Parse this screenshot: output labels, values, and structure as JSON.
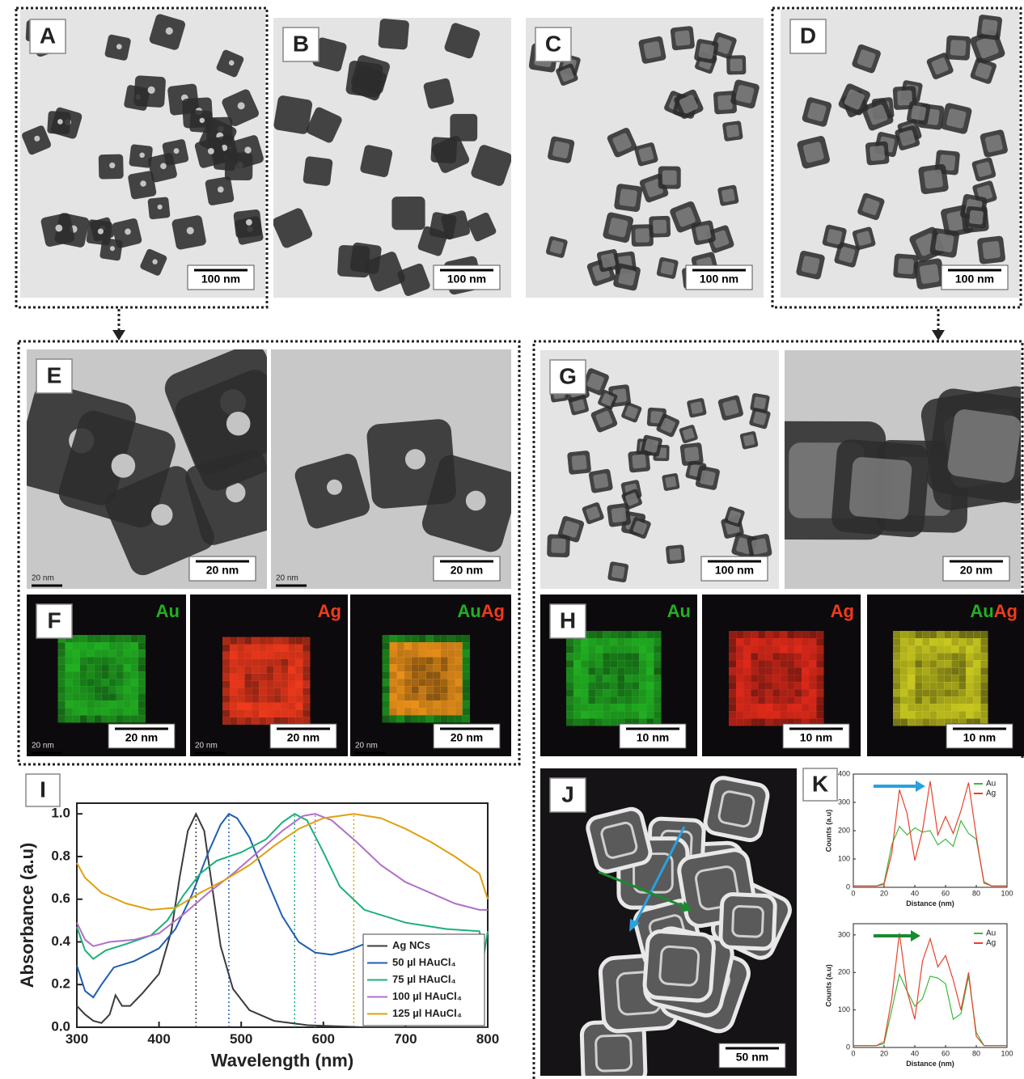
{
  "images": [
    {
      "label": "A",
      "scale_bar": "100 nm"
    },
    {
      "label": "B",
      "scale_bar": "100 nm"
    },
    {
      "label": "C",
      "scale_bar": "100 nm"
    },
    {
      "label": "D",
      "scale_bar": "100 nm"
    },
    {
      "label": "E",
      "scale_bar": "20 nm",
      "faint_scale": "20 nm"
    },
    {
      "scale_bar": "20 nm",
      "faint_scale": "20 nm"
    },
    {
      "label": "F",
      "scale_bar": "20 nm",
      "faint_scale": "20 nm",
      "elements": [
        {
          "text": "Au",
          "color": "#22b022"
        }
      ]
    },
    {
      "scale_bar": "20 nm",
      "faint_scale": "20 nm",
      "elements": [
        {
          "text": "Ag",
          "color": "#f03a1c"
        }
      ]
    },
    {
      "scale_bar": "20 nm",
      "faint_scale": "20 nm",
      "elements": [
        {
          "text": "Au",
          "color": "#22b022"
        },
        {
          "text": "Ag",
          "color": "#f03a1c"
        }
      ]
    },
    {
      "label": "G",
      "scale_bar": "100 nm"
    },
    {
      "scale_bar": "20 nm"
    },
    {
      "label": "H",
      "scale_bar": "10 nm",
      "elements": [
        {
          "text": "Au",
          "color": "#22b022"
        }
      ]
    },
    {
      "scale_bar": "10 nm",
      "elements": [
        {
          "text": "Ag",
          "color": "#f03a1c"
        }
      ]
    },
    {
      "scale_bar": "10 nm",
      "elements": [
        {
          "text": "Au",
          "color": "#22b022"
        },
        {
          "text": "Ag",
          "color": "#f03a1c"
        }
      ]
    },
    {
      "label": "J",
      "scale_bar": "50 nm"
    }
  ],
  "chart_data": [
    {
      "type": "line",
      "panel_label": "I",
      "x_label": "Wavelength (nm)",
      "y_label": "Absorbance (a.u)",
      "xlim": [
        300,
        800
      ],
      "ylim": [
        0,
        1.05
      ],
      "xticks": [
        300,
        400,
        500,
        600,
        700,
        800
      ],
      "yticks": [
        {
          "value": 0,
          "label": "0.0"
        },
        0.2,
        0.4,
        0.6,
        0.8,
        {
          "value": 1,
          "label": "1.0"
        }
      ],
      "legend": "lower right",
      "series": [
        {
          "name": "Ag NCs",
          "color": "#3c3c3c",
          "x": [
            300,
            310,
            320,
            330,
            340,
            347,
            355,
            365,
            380,
            400,
            415,
            425,
            435,
            445,
            455,
            465,
            475,
            490,
            510,
            540,
            580,
            650,
            800
          ],
          "values": [
            0.1,
            0.06,
            0.03,
            0.02,
            0.06,
            0.15,
            0.1,
            0.1,
            0.16,
            0.25,
            0.45,
            0.7,
            0.92,
            1.0,
            0.92,
            0.65,
            0.38,
            0.18,
            0.08,
            0.03,
            0.01,
            0.0,
            0.0
          ]
        },
        {
          "name": "50 µl HAuCl₄",
          "color": "#1f5fb0",
          "x": [
            300,
            310,
            320,
            330,
            345,
            370,
            400,
            420,
            440,
            460,
            475,
            485,
            495,
            510,
            530,
            550,
            570,
            590,
            610,
            630,
            650,
            665
          ],
          "values": [
            0.29,
            0.17,
            0.14,
            0.2,
            0.28,
            0.31,
            0.37,
            0.46,
            0.62,
            0.82,
            0.95,
            1.0,
            0.98,
            0.89,
            0.7,
            0.52,
            0.4,
            0.35,
            0.34,
            0.36,
            0.39,
            0.4
          ]
        },
        {
          "name": "75 µl HAuCl₄",
          "color": "#1db07a",
          "x": [
            300,
            310,
            320,
            335,
            360,
            390,
            410,
            430,
            450,
            470,
            500,
            530,
            550,
            565,
            580,
            600,
            620,
            650,
            700,
            750,
            790,
            795,
            800
          ],
          "values": [
            0.47,
            0.36,
            0.32,
            0.36,
            0.39,
            0.43,
            0.5,
            0.62,
            0.72,
            0.78,
            0.82,
            0.88,
            0.96,
            1.0,
            0.97,
            0.82,
            0.66,
            0.55,
            0.49,
            0.46,
            0.45,
            0.33,
            0.45
          ]
        },
        {
          "name": "100 µl HAuCl₄",
          "color": "#b070c8",
          "x": [
            300,
            310,
            320,
            340,
            370,
            400,
            430,
            460,
            490,
            520,
            550,
            575,
            590,
            610,
            640,
            670,
            700,
            730,
            760,
            790,
            800
          ],
          "values": [
            0.49,
            0.41,
            0.38,
            0.4,
            0.41,
            0.44,
            0.53,
            0.63,
            0.72,
            0.82,
            0.92,
            0.99,
            1.0,
            0.97,
            0.87,
            0.76,
            0.68,
            0.63,
            0.58,
            0.55,
            0.55
          ]
        },
        {
          "name": "125 µl HAuCl₄",
          "color": "#e0a010",
          "x": [
            300,
            310,
            330,
            360,
            390,
            420,
            450,
            480,
            510,
            540,
            570,
            600,
            637,
            670,
            700,
            730,
            760,
            790,
            800
          ],
          "values": [
            0.77,
            0.7,
            0.63,
            0.58,
            0.55,
            0.56,
            0.63,
            0.69,
            0.76,
            0.85,
            0.93,
            0.98,
            1.0,
            0.98,
            0.93,
            0.87,
            0.8,
            0.72,
            0.6
          ]
        }
      ],
      "peak_lines": [
        {
          "x": 445,
          "y": 1.0,
          "color": "#3c3c3c"
        },
        {
          "x": 485,
          "y": 1.0,
          "color": "#1f5fb0"
        },
        {
          "x": 565,
          "y": 1.0,
          "color": "#1db07a"
        },
        {
          "x": 590,
          "y": 1.0,
          "color": "#b070c8"
        },
        {
          "x": 637,
          "y": 1.0,
          "color": "#e0a010"
        }
      ]
    },
    {
      "type": "line",
      "panel_label": "K",
      "x_label": "Distance (nm)",
      "y_label": "Counts (a.u)",
      "xlim": [
        0,
        100
      ],
      "ylim": [
        0,
        400
      ],
      "xticks": [
        0,
        20,
        40,
        60,
        80,
        100
      ],
      "yticks": [
        0,
        100,
        200,
        300,
        400
      ],
      "legend": "upper right",
      "x": [
        0,
        5,
        10,
        15,
        20,
        25,
        30,
        35,
        40,
        45,
        50,
        55,
        60,
        65,
        70,
        75,
        80,
        85,
        90,
        95,
        100
      ],
      "series": [
        {
          "name": "Au",
          "color": "#3cb83c",
          "values": [
            5,
            5,
            5,
            5,
            15,
            150,
            215,
            185,
            210,
            195,
            200,
            150,
            170,
            145,
            235,
            190,
            170,
            20,
            5,
            5,
            5
          ]
        },
        {
          "name": "Ag",
          "color": "#e8402a",
          "values": [
            5,
            5,
            5,
            5,
            10,
            120,
            345,
            260,
            95,
            200,
            375,
            185,
            250,
            190,
            270,
            370,
            180,
            15,
            5,
            5,
            5
          ]
        }
      ]
    },
    {
      "type": "line",
      "x_label": "Distance (nm)",
      "y_label": "Counts (a.u)",
      "xlim": [
        0,
        100
      ],
      "ylim": [
        0,
        330
      ],
      "xticks": [
        0,
        20,
        40,
        60,
        80,
        100
      ],
      "yticks": [
        0,
        100,
        200,
        300
      ],
      "legend": "upper right",
      "x": [
        0,
        5,
        10,
        15,
        20,
        25,
        30,
        35,
        40,
        45,
        50,
        55,
        60,
        65,
        70,
        75,
        80,
        85,
        90,
        95,
        100
      ],
      "series": [
        {
          "name": "Au",
          "color": "#3cb83c",
          "values": [
            5,
            5,
            5,
            5,
            10,
            100,
            195,
            150,
            110,
            130,
            190,
            185,
            170,
            75,
            90,
            190,
            40,
            5,
            5,
            5,
            5
          ]
        },
        {
          "name": "Ag",
          "color": "#e8402a",
          "values": [
            5,
            5,
            5,
            5,
            15,
            130,
            305,
            150,
            75,
            230,
            290,
            215,
            245,
            180,
            100,
            200,
            30,
            5,
            5,
            5,
            5
          ]
        }
      ]
    }
  ]
}
